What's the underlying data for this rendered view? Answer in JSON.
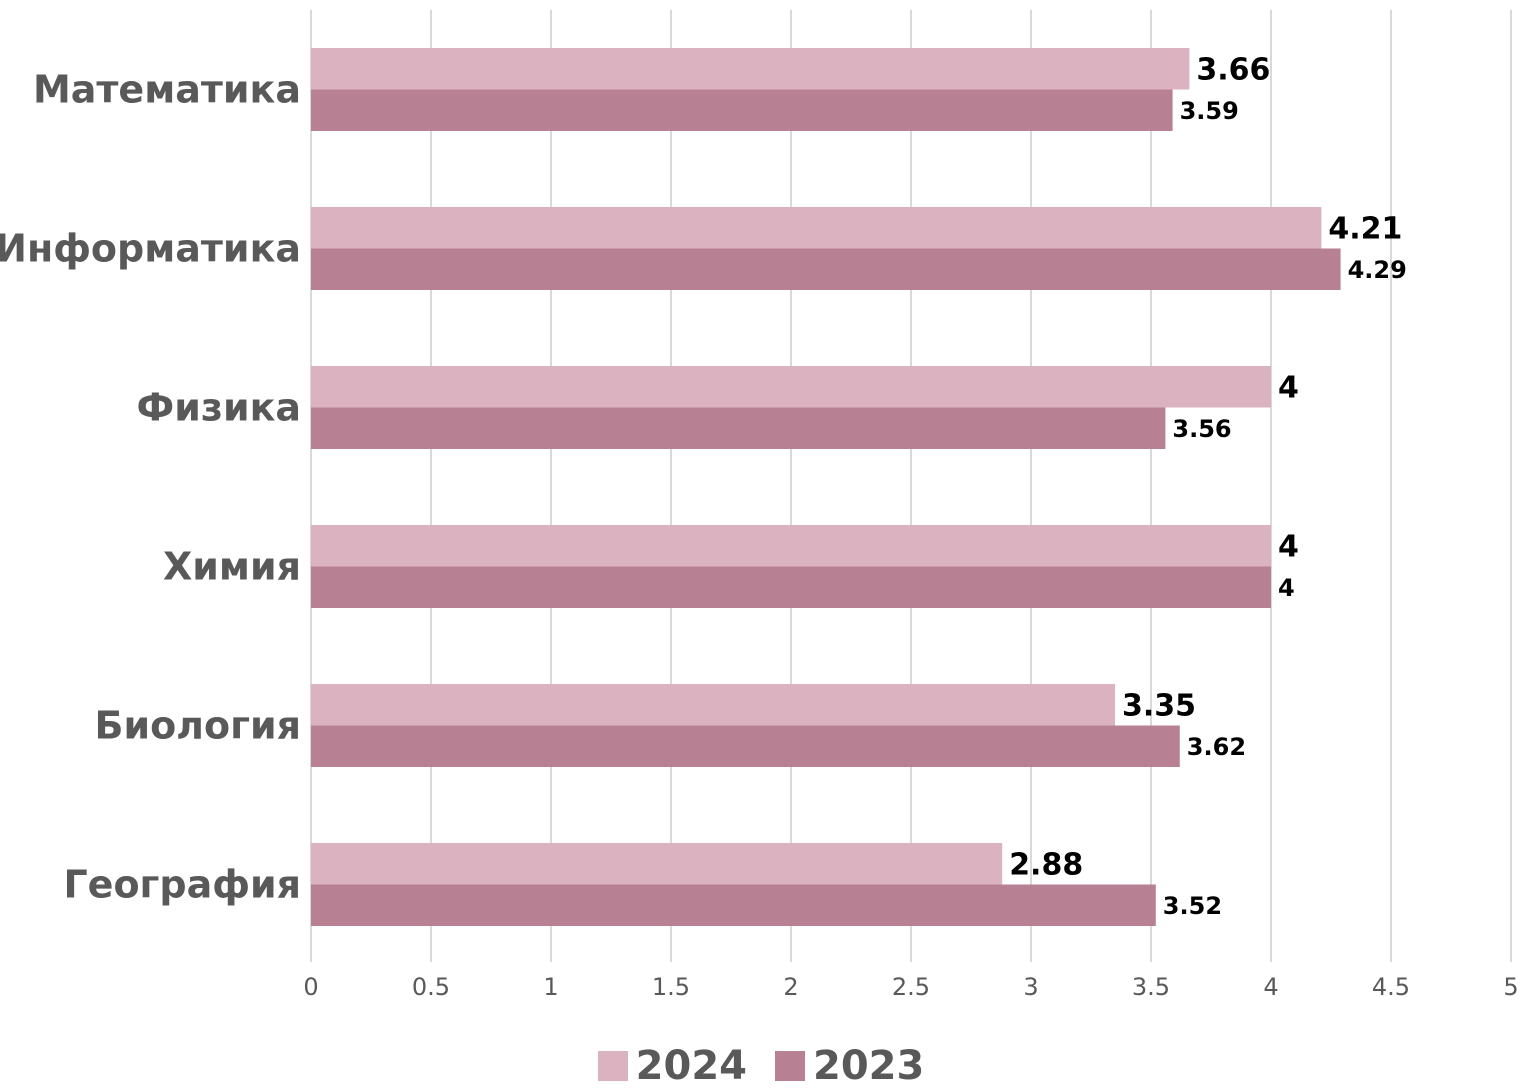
{
  "chart_data": {
    "type": "bar",
    "orientation": "horizontal",
    "categories": [
      "Математика",
      "Информатика",
      "Физика",
      "Химия",
      "Биология",
      "География"
    ],
    "series": [
      {
        "name": "2024",
        "color": "#dbb2c0",
        "values": [
          3.66,
          4.21,
          4,
          4,
          3.35,
          2.88
        ]
      },
      {
        "name": "2023",
        "color": "#b88193",
        "values": [
          3.59,
          4.29,
          3.56,
          4,
          3.62,
          3.52
        ]
      }
    ],
    "xlim": [
      0,
      5
    ],
    "xticks": [
      "0",
      "0.5",
      "1",
      "1.5",
      "2",
      "2.5",
      "3",
      "3.5",
      "4",
      "4.5",
      "5"
    ],
    "grid": true,
    "data_labels": true,
    "legend_position": "bottom"
  }
}
